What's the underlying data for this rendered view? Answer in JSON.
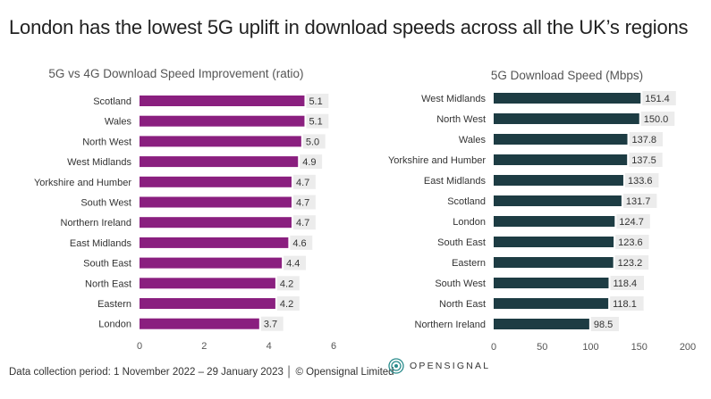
{
  "headline": "London has the lowest 5G uplift in download speeds across all the UK’s regions",
  "chart_data": [
    {
      "type": "bar",
      "orientation": "horizontal",
      "title": "5G vs 4G Download Speed Improvement (ratio)",
      "categories": [
        "Scotland",
        "Wales",
        "North West",
        "West Midlands",
        "Yorkshire and Humber",
        "South West",
        "Northern Ireland",
        "East Midlands",
        "South East",
        "North East",
        "Eastern",
        "London"
      ],
      "values": [
        5.1,
        5.1,
        5.0,
        4.9,
        4.7,
        4.7,
        4.7,
        4.6,
        4.4,
        4.2,
        4.2,
        3.7
      ],
      "value_labels": [
        "5.1",
        "5.1",
        "5.0",
        "4.9",
        "4.7",
        "4.7",
        "4.7",
        "4.6",
        "4.4",
        "4.2",
        "4.2",
        "3.7"
      ],
      "xlim": [
        0,
        6
      ],
      "xticks": [
        0,
        2,
        4,
        6
      ],
      "xlabel": "",
      "ylabel": "",
      "color": "#8a1f7f"
    },
    {
      "type": "bar",
      "orientation": "horizontal",
      "title": "5G Download Speed (Mbps)",
      "categories": [
        "West Midlands",
        "North West",
        "Wales",
        "Yorkshire and Humber",
        "East Midlands",
        "Scotland",
        "London",
        "South East",
        "Eastern",
        "South West",
        "North East",
        "Northern Ireland"
      ],
      "values": [
        151.4,
        150.0,
        137.8,
        137.5,
        133.6,
        131.7,
        124.7,
        123.6,
        123.2,
        118.4,
        118.1,
        98.5
      ],
      "value_labels": [
        "151.4",
        "150.0",
        "137.8",
        "137.5",
        "133.6",
        "131.7",
        "124.7",
        "123.6",
        "123.2",
        "118.4",
        "118.1",
        "98.5"
      ],
      "xlim": [
        0,
        200
      ],
      "xticks": [
        0,
        50,
        100,
        150,
        200
      ],
      "xlabel": "",
      "ylabel": "",
      "color": "#1d3c43"
    }
  ],
  "footer": "Data collection period: 1 November 2022 – 29 January 2023 │ © Opensignal Limited",
  "brand": {
    "name": "OPENSIGNAL",
    "icon": "opensignal-logo-icon",
    "accent": "#2a8c8c"
  }
}
